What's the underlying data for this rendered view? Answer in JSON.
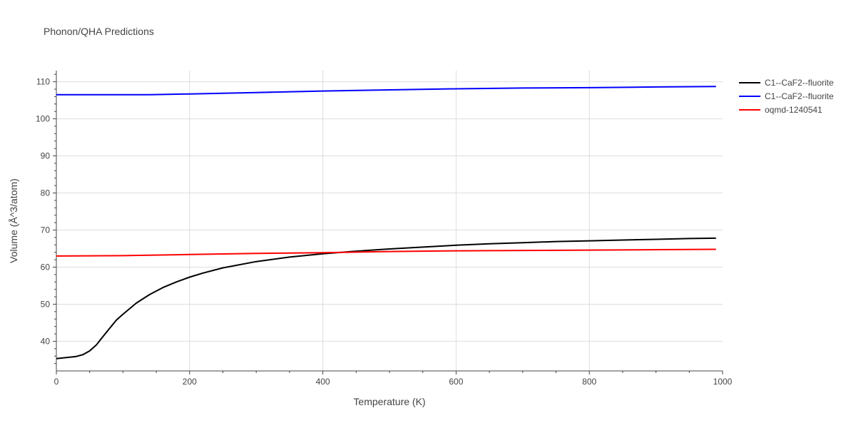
{
  "chart_data": {
    "type": "line",
    "title": "Phonon/QHA Predictions",
    "xlabel": "Temperature (K)",
    "ylabel": "Volume (Å^3/atom)",
    "xlim": [
      0,
      1000
    ],
    "ylim": [
      32,
      113
    ],
    "x_ticks": [
      0,
      200,
      400,
      600,
      800,
      1000
    ],
    "y_ticks": [
      40,
      50,
      60,
      70,
      80,
      90,
      100,
      110
    ],
    "grid": true,
    "legend_position": "top-right",
    "series": [
      {
        "name": "C1--CaF2--fluorite",
        "color": "#000000",
        "x": [
          0,
          10,
          20,
          30,
          40,
          50,
          60,
          70,
          80,
          90,
          100,
          120,
          140,
          160,
          180,
          200,
          220,
          250,
          300,
          350,
          400,
          450,
          500,
          550,
          600,
          650,
          700,
          750,
          800,
          850,
          900,
          950,
          990
        ],
        "y": [
          35.3,
          35.5,
          35.7,
          35.9,
          36.4,
          37.4,
          39.0,
          41.3,
          43.5,
          45.7,
          47.3,
          50.3,
          52.6,
          54.5,
          56.0,
          57.3,
          58.4,
          59.8,
          61.5,
          62.7,
          63.6,
          64.3,
          64.9,
          65.4,
          65.9,
          66.3,
          66.6,
          66.9,
          67.1,
          67.3,
          67.5,
          67.7,
          67.8
        ]
      },
      {
        "name": "C1--CaF2--fluorite",
        "color": "#0000ff",
        "x": [
          0,
          140,
          200,
          300,
          400,
          500,
          600,
          700,
          800,
          900,
          990
        ],
        "y": [
          106.5,
          106.5,
          106.7,
          107.1,
          107.5,
          107.8,
          108.1,
          108.3,
          108.4,
          108.6,
          108.7
        ]
      },
      {
        "name": "oqmd-1240541",
        "color": "#ff0000",
        "x": [
          0,
          100,
          200,
          300,
          400,
          500,
          600,
          700,
          800,
          900,
          990
        ],
        "y": [
          63.0,
          63.1,
          63.4,
          63.7,
          63.9,
          64.2,
          64.4,
          64.5,
          64.6,
          64.7,
          64.8
        ]
      }
    ]
  }
}
